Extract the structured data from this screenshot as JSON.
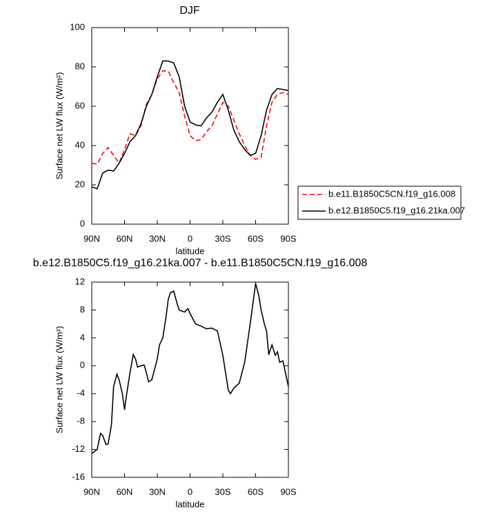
{
  "chart_data": [
    {
      "type": "line",
      "title": "DJF",
      "xlabel": "latitude",
      "ylabel": "Surface net LW flux (W/m²)",
      "x": [
        90,
        85,
        80,
        75,
        70,
        65,
        60,
        55,
        50,
        45,
        40,
        35,
        30,
        25,
        20,
        15,
        10,
        5,
        0,
        -5,
        -10,
        -15,
        -20,
        -25,
        -30,
        -35,
        -40,
        -45,
        -50,
        -55,
        -60,
        -65,
        -70,
        -75,
        -80,
        -85,
        -90
      ],
      "xlim": [
        90,
        -90
      ],
      "xticks": [
        {
          "value": 90,
          "label": "90N"
        },
        {
          "value": 60,
          "label": "60N"
        },
        {
          "value": 30,
          "label": "30N"
        },
        0,
        {
          "value": -30,
          "label": "30S"
        },
        {
          "value": -60,
          "label": "60S"
        },
        {
          "value": -90,
          "label": "90S"
        }
      ],
      "ylim": [
        0,
        100
      ],
      "yticks": [
        0,
        20,
        40,
        60,
        80,
        100
      ],
      "legend": "right",
      "series": [
        {
          "name": "b.e11.B1850C5CN.f19_g16.008",
          "color": "#ff0000",
          "dashed": true,
          "values": [
            31,
            30.5,
            36,
            39,
            35,
            31,
            38,
            46,
            45,
            50,
            61,
            66,
            74,
            78,
            78,
            72,
            67,
            55,
            45,
            42.5,
            43,
            47,
            50,
            56,
            62,
            60,
            53,
            46,
            40,
            35,
            33,
            34,
            50,
            62,
            66,
            67,
            66
          ]
        },
        {
          "name": "b.e12.B1850C5.f19_g16.21ka.007",
          "color": "#000000",
          "dashed": false,
          "values": [
            19,
            18,
            26,
            27.5,
            27,
            31,
            36,
            42,
            45,
            51,
            60,
            66,
            75,
            83,
            83,
            82,
            75,
            60,
            52,
            50.5,
            50,
            54,
            57,
            62,
            66,
            58,
            48,
            42,
            38,
            35,
            36,
            45,
            58,
            66,
            69,
            68.5,
            68
          ]
        }
      ]
    },
    {
      "type": "line",
      "title": "b.e12.B1850C5.f19_g16.21ka.007 - b.e11.B1850C5CN.f19_g16.008",
      "xlabel": "latitude",
      "ylabel": "Surface net LW flux (W/m²)",
      "x": [
        90,
        85,
        82,
        80,
        77,
        75,
        72,
        70,
        67,
        65,
        62,
        60,
        58,
        55,
        52,
        50,
        48,
        45,
        42,
        40,
        38,
        35,
        30,
        28,
        25,
        22,
        20,
        18,
        15,
        12,
        10,
        5,
        2,
        0,
        -5,
        -10,
        -15,
        -20,
        -25,
        -30,
        -35,
        -37,
        -40,
        -45,
        -50,
        -55,
        -60,
        -63,
        -65,
        -68,
        -70,
        -72,
        -75,
        -78,
        -80,
        -82,
        -85,
        -90
      ],
      "values": [
        -12.6,
        -12,
        -9.7,
        -10,
        -11.3,
        -11.2,
        -8.5,
        -3,
        -1.2,
        -2,
        -4,
        -6.3,
        -4,
        -1,
        1.6,
        1,
        -0.2,
        0,
        0.1,
        -1,
        -2.3,
        -2,
        1,
        3,
        4,
        7,
        9.5,
        10.5,
        10.7,
        9,
        8,
        7.7,
        8.2,
        7.5,
        6,
        5.7,
        5.3,
        5.4,
        5,
        1.5,
        -3.5,
        -4,
        -3.2,
        -2.5,
        0.5,
        6,
        11.8,
        10,
        8,
        6,
        5,
        1.6,
        3,
        1.5,
        2,
        0.5,
        0.7,
        -3
      ],
      "color": "#000000",
      "xlim": [
        90,
        -90
      ],
      "xticks": [
        {
          "value": 90,
          "label": "90N"
        },
        {
          "value": 60,
          "label": "60N"
        },
        {
          "value": 30,
          "label": "30N"
        },
        0,
        {
          "value": -30,
          "label": "30S"
        },
        {
          "value": -60,
          "label": "60S"
        },
        {
          "value": -90,
          "label": "90S"
        }
      ],
      "ylim": [
        -16,
        12
      ],
      "yticks": [
        -16,
        -12,
        -8,
        -4,
        0,
        4,
        8,
        12
      ]
    }
  ]
}
